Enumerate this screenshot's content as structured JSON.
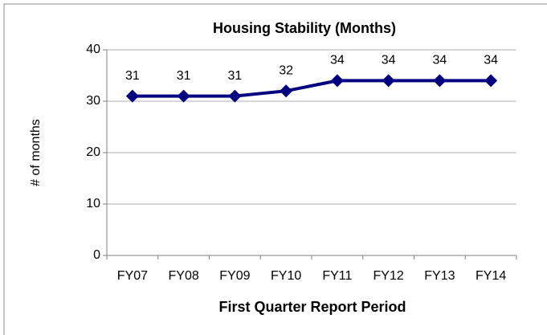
{
  "chart_data": {
    "type": "line",
    "title": "Housing Stability (Months)",
    "x_label": "First Quarter Report Period",
    "y_label": "# of months",
    "categories": [
      "FY07",
      "FY08",
      "FY09",
      "FY10",
      "FY11",
      "FY12",
      "FY13",
      "FY14"
    ],
    "series": [
      {
        "name": "Housing Stability",
        "color": "#000080",
        "values": [
          31,
          31,
          31,
          32,
          34,
          34,
          34,
          34
        ]
      }
    ],
    "ylim": [
      0,
      40
    ],
    "yticks": [
      0,
      10,
      20,
      30,
      40
    ],
    "grid": true
  }
}
